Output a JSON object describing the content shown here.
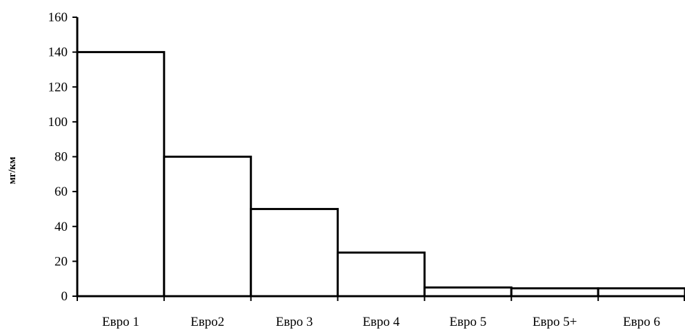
{
  "chart_data": {
    "type": "bar",
    "categories": [
      "Евро 1",
      "Евро2",
      "Евро 3",
      "Евро 4",
      "Евро 5",
      "Евро 5+",
      "Евро 6"
    ],
    "values": [
      140,
      80,
      50,
      25,
      5,
      4.5,
      4.5
    ],
    "title": "",
    "xlabel": "",
    "ylabel": "мг/км",
    "ylim": [
      0,
      160
    ],
    "yticks": [
      0,
      20,
      40,
      60,
      80,
      100,
      120,
      140,
      160
    ],
    "grid": false,
    "legend": "none",
    "bar_fill": "#ffffff",
    "bar_stroke": "#000000"
  }
}
